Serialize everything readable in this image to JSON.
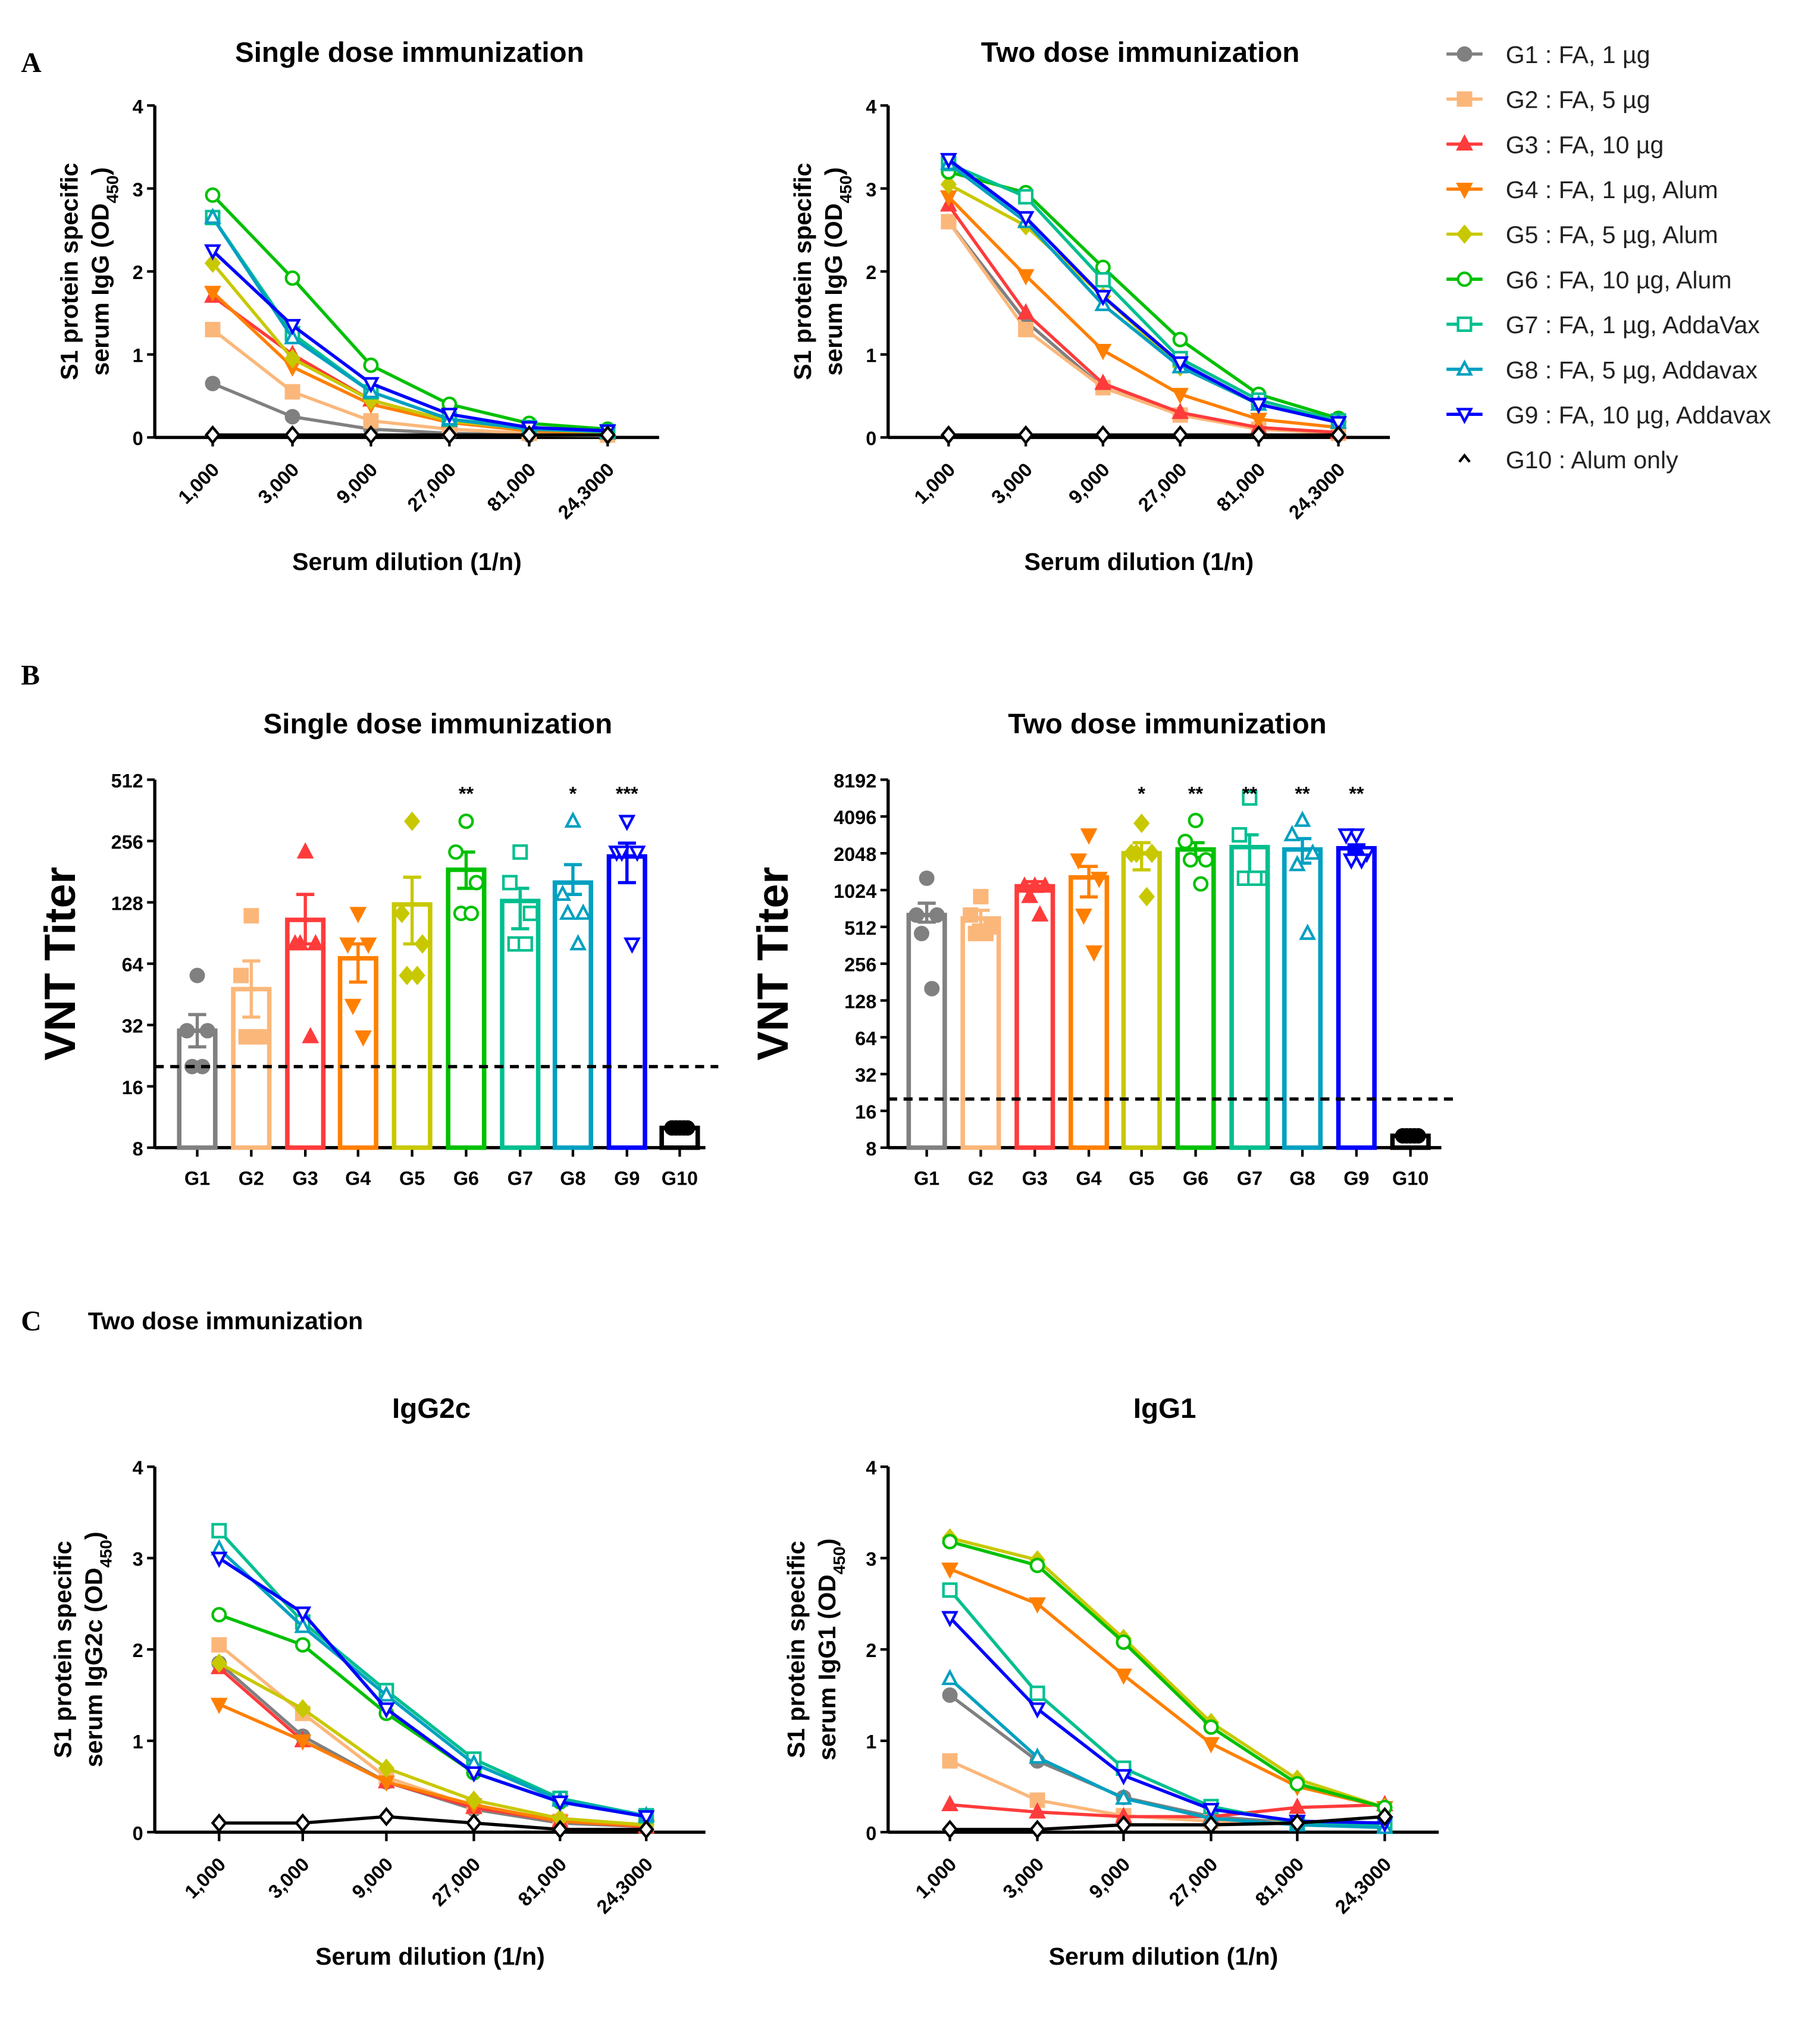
{
  "panel_letters": {
    "a": "A",
    "b": "B",
    "c": "C"
  },
  "panel_c_heading": "Two dose immunization",
  "legend": [
    {
      "group": "G1",
      "label": "G1 : FA, 1 µg",
      "color": "#808080",
      "marker": "circle-filled"
    },
    {
      "group": "G2",
      "label": "G2 : FA, 5 µg",
      "color": "#FBB77A",
      "marker": "square-filled"
    },
    {
      "group": "G3",
      "label": "G3 : FA, 10 µg",
      "color": "#FF3B3B",
      "marker": "triangle-up-filled"
    },
    {
      "group": "G4",
      "label": "G4 : FA, 1 µg, Alum",
      "color": "#FF7F00",
      "marker": "triangle-down-filled"
    },
    {
      "group": "G5",
      "label": "G5 : FA, 5 µg, Alum",
      "color": "#C8C800",
      "marker": "diamond-filled"
    },
    {
      "group": "G6",
      "label": "G6 : FA, 10 µg, Alum",
      "color": "#00C000",
      "marker": "circle-open"
    },
    {
      "group": "G7",
      "label": "G7 : FA, 1 µg, AddaVax",
      "color": "#00BF8F",
      "marker": "square-open"
    },
    {
      "group": "G8",
      "label": "G8 : FA, 5 µg, Addavax",
      "color": "#00A0C0",
      "marker": "triangle-up-open"
    },
    {
      "group": "G9",
      "label": "G9 : FA, 10 µg, Addavax",
      "color": "#0000FF",
      "marker": "triangle-down-open"
    },
    {
      "group": "G10",
      "label": "G10 : Alum only",
      "color": "#000000",
      "marker": "caret"
    }
  ],
  "chart_data": [
    {
      "panel": "A",
      "type": "line",
      "title": "Single dose immunization",
      "xlabel": "Serum dilution (1/n)",
      "ylabel": {
        "line1": "S1 protein specific",
        "line2": "serum IgG (OD",
        "sub": "450",
        "end": ")"
      },
      "x": [
        1000,
        3000,
        9000,
        27000,
        81000,
        243000
      ],
      "x_tick_labels": [
        "1,000",
        "3,000",
        "9,000",
        "27,000",
        "81,000",
        "24,3000"
      ],
      "ylim": [
        0,
        4
      ],
      "y_ticks": [
        "0",
        "1",
        "2",
        "3",
        "4"
      ],
      "series": [
        {
          "group": "G1",
          "values": [
            0.65,
            0.25,
            0.1,
            0.05,
            0.03,
            0.02
          ]
        },
        {
          "group": "G2",
          "values": [
            1.3,
            0.55,
            0.2,
            0.1,
            0.05,
            0.03
          ]
        },
        {
          "group": "G3",
          "values": [
            1.7,
            1.0,
            0.45,
            0.2,
            0.1,
            0.05
          ]
        },
        {
          "group": "G4",
          "values": [
            1.75,
            0.85,
            0.4,
            0.18,
            0.08,
            0.05
          ]
        },
        {
          "group": "G5",
          "values": [
            2.1,
            0.95,
            0.45,
            0.2,
            0.1,
            0.06
          ]
        },
        {
          "group": "G6",
          "values": [
            2.92,
            1.92,
            0.87,
            0.4,
            0.17,
            0.1
          ]
        },
        {
          "group": "G7",
          "values": [
            2.65,
            1.25,
            0.55,
            0.22,
            0.12,
            0.07
          ]
        },
        {
          "group": "G8",
          "values": [
            2.65,
            1.2,
            0.55,
            0.22,
            0.1,
            0.07
          ]
        },
        {
          "group": "G9",
          "values": [
            2.25,
            1.35,
            0.65,
            0.28,
            0.12,
            0.08
          ]
        },
        {
          "group": "G10",
          "values": [
            0.03,
            0.03,
            0.03,
            0.03,
            0.03,
            0.03
          ]
        }
      ]
    },
    {
      "panel": "A",
      "type": "line",
      "title": "Two dose immunization",
      "xlabel": "Serum dilution (1/n)",
      "ylabel": {
        "line1": "S1 protein specific",
        "line2": "serum IgG (OD",
        "sub": "450",
        "end": ")"
      },
      "x": [
        1000,
        3000,
        9000,
        27000,
        81000,
        243000
      ],
      "x_tick_labels": [
        "1,000",
        "3,000",
        "9,000",
        "27,000",
        "81,000",
        "24,3000"
      ],
      "ylim": [
        0,
        4
      ],
      "y_ticks": [
        "0",
        "1",
        "2",
        "3",
        "4"
      ],
      "series": [
        {
          "group": "G1",
          "values": [
            2.6,
            1.4,
            0.6,
            0.28,
            0.1,
            0.05
          ]
        },
        {
          "group": "G2",
          "values": [
            2.6,
            1.3,
            0.6,
            0.27,
            0.1,
            0.05
          ]
        },
        {
          "group": "G3",
          "values": [
            2.8,
            1.5,
            0.65,
            0.3,
            0.12,
            0.06
          ]
        },
        {
          "group": "G4",
          "values": [
            2.9,
            1.95,
            1.05,
            0.52,
            0.22,
            0.12
          ]
        },
        {
          "group": "G5",
          "values": [
            3.05,
            2.55,
            1.7,
            0.85,
            0.4,
            0.18
          ]
        },
        {
          "group": "G6",
          "values": [
            3.2,
            2.95,
            2.05,
            1.18,
            0.52,
            0.23
          ]
        },
        {
          "group": "G7",
          "values": [
            3.3,
            2.9,
            1.9,
            0.95,
            0.45,
            0.2
          ]
        },
        {
          "group": "G8",
          "values": [
            3.3,
            2.6,
            1.6,
            0.85,
            0.4,
            0.18
          ]
        },
        {
          "group": "G9",
          "values": [
            3.35,
            2.65,
            1.7,
            0.9,
            0.4,
            0.18
          ]
        },
        {
          "group": "G10",
          "values": [
            0.03,
            0.03,
            0.03,
            0.03,
            0.03,
            0.03
          ]
        }
      ]
    },
    {
      "panel": "B",
      "type": "bar",
      "title": "Single dose immunization",
      "ylabel": "VNT Titer",
      "y_scale": "log2",
      "ylim": [
        8,
        512
      ],
      "y_ticks": [
        "8",
        "16",
        "32",
        "64",
        "128",
        "256",
        "512"
      ],
      "threshold": 20,
      "categories": [
        "G1",
        "G2",
        "G3",
        "G4",
        "G5",
        "G6",
        "G7",
        "G8",
        "G9",
        "G10"
      ],
      "values": [
        30,
        48,
        105,
        68,
        125,
        185,
        130,
        160,
        215,
        10
      ],
      "error_low": [
        25,
        35,
        80,
        52,
        80,
        150,
        95,
        140,
        160,
        10
      ],
      "error_high": [
        36,
        66,
        140,
        80,
        170,
        226,
        150,
        196,
        250,
        10
      ],
      "points": [
        [
          56,
          30,
          30,
          20,
          20
        ],
        [
          110,
          56,
          28,
          28,
          28
        ],
        [
          226,
          80,
          80,
          80,
          28
        ],
        [
          113,
          80,
          80,
          40,
          28
        ],
        [
          320,
          113,
          80,
          56,
          56
        ],
        [
          320,
          226,
          160,
          113,
          113
        ],
        [
          226,
          160,
          113,
          80,
          80
        ],
        [
          320,
          140,
          113,
          113,
          80
        ],
        [
          320,
          226,
          226,
          226,
          80
        ],
        [
          10,
          10,
          10,
          10,
          10
        ]
      ],
      "significance": [
        "",
        "",
        "",
        "",
        "",
        "**",
        "",
        "*",
        "***",
        ""
      ]
    },
    {
      "panel": "B",
      "type": "bar",
      "title": "Two dose immunization",
      "ylabel": "VNT Titer",
      "y_scale": "log2",
      "ylim": [
        8,
        8192
      ],
      "y_ticks": [
        "8",
        "16",
        "32",
        "64",
        "128",
        "256",
        "512",
        "1024",
        "2048",
        "4096",
        "8192"
      ],
      "threshold": 20,
      "categories": [
        "G1",
        "G2",
        "G3",
        "G4",
        "G5",
        "G6",
        "G7",
        "G8",
        "G9",
        "G10"
      ],
      "values": [
        640,
        600,
        1100,
        1300,
        2048,
        2200,
        2300,
        2200,
        2250,
        10
      ],
      "error_low": [
        560,
        530,
        1000,
        900,
        1500,
        1900,
        1300,
        1700,
        2100,
        10
      ],
      "error_high": [
        800,
        700,
        1200,
        1600,
        2500,
        2500,
        2900,
        2700,
        2400,
        10
      ],
      "points": [
        [
          1280,
          640,
          640,
          452,
          160
        ],
        [
          905,
          640,
          512,
          452,
          452
        ],
        [
          1100,
          1100,
          1100,
          905,
          640
        ],
        [
          2900,
          1810,
          1280,
          640,
          320
        ],
        [
          3600,
          2048,
          2048,
          2048,
          905
        ],
        [
          3800,
          2560,
          1810,
          1810,
          1150
        ],
        [
          5800,
          2900,
          1280,
          1280,
          1280
        ],
        [
          3800,
          2900,
          2048,
          1650,
          452
        ],
        [
          2900,
          2900,
          2048,
          1810,
          1810
        ],
        [
          10,
          10,
          10,
          10,
          10
        ]
      ],
      "significance": [
        "",
        "",
        "",
        "",
        "*",
        "**",
        "**",
        "**",
        "**",
        ""
      ]
    },
    {
      "panel": "C",
      "type": "line",
      "title": "IgG2c",
      "xlabel": "Serum dilution (1/n)",
      "ylabel": {
        "line1": "S1 protein specific",
        "line2": "serum IgG2c (OD",
        "sub": "450",
        "end": ")"
      },
      "x": [
        1000,
        3000,
        9000,
        27000,
        81000,
        243000
      ],
      "x_tick_labels": [
        "1,000",
        "3,000",
        "9,000",
        "27,000",
        "81,000",
        "24,3000"
      ],
      "ylim": [
        0,
        4
      ],
      "y_ticks": [
        "0",
        "1",
        "2",
        "3",
        "4"
      ],
      "series": [
        {
          "group": "G1",
          "values": [
            1.85,
            1.05,
            0.55,
            0.25,
            0.1,
            0.06
          ]
        },
        {
          "group": "G2",
          "values": [
            2.05,
            1.3,
            0.6,
            0.28,
            0.12,
            0.07
          ]
        },
        {
          "group": "G3",
          "values": [
            1.8,
            1.0,
            0.55,
            0.27,
            0.12,
            0.06
          ]
        },
        {
          "group": "G4",
          "values": [
            1.4,
            1.0,
            0.55,
            0.3,
            0.12,
            0.07
          ]
        },
        {
          "group": "G5",
          "values": [
            1.85,
            1.35,
            0.7,
            0.35,
            0.15,
            0.08
          ]
        },
        {
          "group": "G6",
          "values": [
            2.38,
            2.05,
            1.3,
            0.65,
            0.33,
            0.17
          ]
        },
        {
          "group": "G7",
          "values": [
            3.3,
            2.3,
            1.55,
            0.8,
            0.37,
            0.18
          ]
        },
        {
          "group": "G8",
          "values": [
            3.1,
            2.25,
            1.5,
            0.75,
            0.35,
            0.18
          ]
        },
        {
          "group": "G9",
          "values": [
            3.0,
            2.4,
            1.35,
            0.65,
            0.33,
            0.17
          ]
        },
        {
          "group": "G10",
          "values": [
            0.1,
            0.1,
            0.17,
            0.1,
            0.03,
            0.03
          ]
        }
      ]
    },
    {
      "panel": "C",
      "type": "line",
      "title": "IgG1",
      "xlabel": "Serum dilution (1/n)",
      "ylabel": {
        "line1": "S1 protein specific",
        "line2": "serum IgG1 (OD",
        "sub": "450",
        "end": ")"
      },
      "x": [
        1000,
        3000,
        9000,
        27000,
        81000,
        243000
      ],
      "x_tick_labels": [
        "1,000",
        "3,000",
        "9,000",
        "27,000",
        "81,000",
        "24,3000"
      ],
      "ylim": [
        0,
        4
      ],
      "y_ticks": [
        "0",
        "1",
        "2",
        "3",
        "4"
      ],
      "series": [
        {
          "group": "G1",
          "values": [
            1.5,
            0.78,
            0.38,
            0.17,
            0.1,
            0.08
          ]
        },
        {
          "group": "G2",
          "values": [
            0.78,
            0.35,
            0.18,
            0.12,
            0.1,
            0.08
          ]
        },
        {
          "group": "G3",
          "values": [
            0.3,
            0.22,
            0.17,
            0.17,
            0.27,
            0.3
          ]
        },
        {
          "group": "G4",
          "values": [
            2.88,
            2.5,
            1.72,
            0.97,
            0.5,
            0.27
          ]
        },
        {
          "group": "G5",
          "values": [
            3.22,
            2.98,
            2.12,
            1.2,
            0.58,
            0.27
          ]
        },
        {
          "group": "G6",
          "values": [
            3.18,
            2.92,
            2.08,
            1.15,
            0.53,
            0.27
          ]
        },
        {
          "group": "G7",
          "values": [
            2.65,
            1.52,
            0.7,
            0.28,
            0.1,
            0.08
          ]
        },
        {
          "group": "G8",
          "values": [
            1.68,
            0.82,
            0.37,
            0.15,
            0.08,
            0.05
          ]
        },
        {
          "group": "G9",
          "values": [
            2.35,
            1.35,
            0.62,
            0.25,
            0.12,
            0.1
          ]
        },
        {
          "group": "G10",
          "values": [
            0.03,
            0.03,
            0.08,
            0.08,
            0.1,
            0.17
          ]
        }
      ]
    }
  ]
}
